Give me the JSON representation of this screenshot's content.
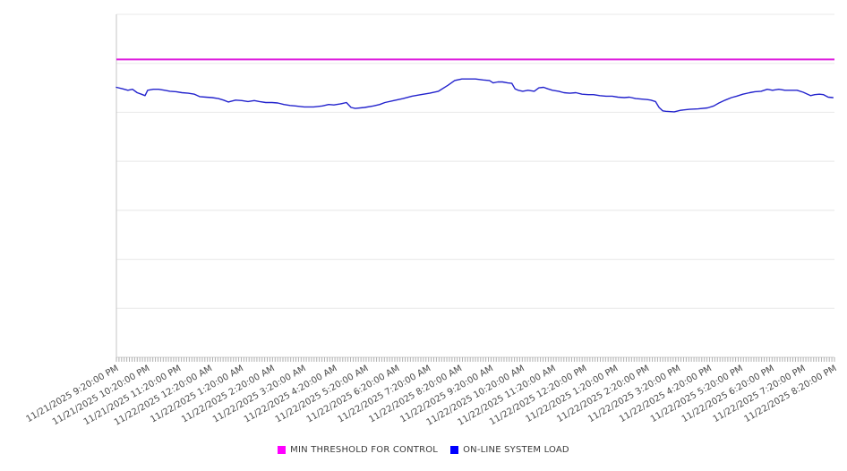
{
  "chart_data": {
    "type": "line",
    "title": "",
    "grid": "horizontal",
    "legend_position": "bottom-center",
    "x_axis": {
      "unit": "time",
      "range_minutes": [
        0,
        1380
      ],
      "minor_tick_interval_minutes": 5,
      "label_interval_minutes": 60,
      "labels": [
        "11/21/2025 9:20:00 PM",
        "11/21/2025 10:20:00 PM",
        "11/21/2025 11:20:00 PM",
        "11/22/2025 12:20:00 AM",
        "11/22/2025 1:20:00 AM",
        "11/22/2025 2:20:00 AM",
        "11/22/2025 3:20:00 AM",
        "11/22/2025 4:20:00 AM",
        "11/22/2025 5:20:00 AM",
        "11/22/2025 6:20:00 AM",
        "11/22/2025 7:20:00 AM",
        "11/22/2025 8:20:00 AM",
        "11/22/2025 9:20:00 AM",
        "11/22/2025 10:20:00 AM",
        "11/22/2025 11:20:00 AM",
        "11/22/2025 12:20:00 PM",
        "11/22/2025 1:20:00 PM",
        "11/22/2025 2:20:00 PM",
        "11/22/2025 3:20:00 PM",
        "11/22/2025 4:20:00 PM",
        "11/22/2025 5:20:00 PM",
        "11/22/2025 6:20:00 PM",
        "11/22/2025 7:20:00 PM",
        "11/22/2025 8:20:00 PM"
      ]
    },
    "y_axis": {
      "tick_labels_visible": false,
      "range": [
        0,
        70
      ],
      "gridline_step": 10
    },
    "series": [
      {
        "name": "MIN THRESHOLD FOR CONTROL",
        "type": "constant-line",
        "color": "#dd1ddd",
        "value": 60.8,
        "x_span_minutes": [
          0,
          1380
        ]
      },
      {
        "name": "ON-LINE SYSTEM LOAD",
        "type": "line",
        "color": "#2323cd",
        "points_minutes_value": [
          [
            0,
            55.1
          ],
          [
            12,
            54.8
          ],
          [
            22,
            54.5
          ],
          [
            31,
            54.7
          ],
          [
            40,
            54.0
          ],
          [
            48,
            53.7
          ],
          [
            55,
            53.4
          ],
          [
            60,
            54.5
          ],
          [
            71,
            54.7
          ],
          [
            81,
            54.7
          ],
          [
            93,
            54.5
          ],
          [
            103,
            54.3
          ],
          [
            115,
            54.2
          ],
          [
            126,
            54.0
          ],
          [
            138,
            53.9
          ],
          [
            150,
            53.7
          ],
          [
            160,
            53.2
          ],
          [
            172,
            53.1
          ],
          [
            184,
            53.0
          ],
          [
            196,
            52.8
          ],
          [
            206,
            52.5
          ],
          [
            215,
            52.1
          ],
          [
            229,
            52.5
          ],
          [
            241,
            52.4
          ],
          [
            253,
            52.2
          ],
          [
            265,
            52.4
          ],
          [
            275,
            52.2
          ],
          [
            287,
            52.0
          ],
          [
            299,
            52.0
          ],
          [
            310,
            51.9
          ],
          [
            322,
            51.6
          ],
          [
            334,
            51.4
          ],
          [
            344,
            51.3
          ],
          [
            361,
            51.1
          ],
          [
            379,
            51.1
          ],
          [
            396,
            51.3
          ],
          [
            408,
            51.6
          ],
          [
            418,
            51.5
          ],
          [
            430,
            51.7
          ],
          [
            442,
            52.0
          ],
          [
            451,
            51.0
          ],
          [
            459,
            50.8
          ],
          [
            477,
            51.0
          ],
          [
            494,
            51.3
          ],
          [
            506,
            51.6
          ],
          [
            516,
            52.0
          ],
          [
            533,
            52.4
          ],
          [
            551,
            52.8
          ],
          [
            568,
            53.3
          ],
          [
            585,
            53.6
          ],
          [
            602,
            53.9
          ],
          [
            619,
            54.3
          ],
          [
            637,
            55.5
          ],
          [
            650,
            56.5
          ],
          [
            664,
            56.8
          ],
          [
            676,
            56.8
          ],
          [
            690,
            56.8
          ],
          [
            705,
            56.6
          ],
          [
            717,
            56.5
          ],
          [
            724,
            56.0
          ],
          [
            733,
            56.2
          ],
          [
            742,
            56.2
          ],
          [
            752,
            56.0
          ],
          [
            760,
            55.9
          ],
          [
            766,
            54.8
          ],
          [
            772,
            54.5
          ],
          [
            781,
            54.3
          ],
          [
            791,
            54.5
          ],
          [
            803,
            54.3
          ],
          [
            812,
            55.0
          ],
          [
            821,
            55.1
          ],
          [
            829,
            54.8
          ],
          [
            838,
            54.5
          ],
          [
            850,
            54.3
          ],
          [
            860,
            54.0
          ],
          [
            872,
            53.9
          ],
          [
            883,
            54.0
          ],
          [
            895,
            53.7
          ],
          [
            907,
            53.6
          ],
          [
            917,
            53.6
          ],
          [
            929,
            53.4
          ],
          [
            941,
            53.3
          ],
          [
            953,
            53.3
          ],
          [
            964,
            53.1
          ],
          [
            976,
            53.0
          ],
          [
            986,
            53.1
          ],
          [
            998,
            52.8
          ],
          [
            1010,
            52.7
          ],
          [
            1020,
            52.6
          ],
          [
            1027,
            52.5
          ],
          [
            1036,
            52.2
          ],
          [
            1043,
            51.0
          ],
          [
            1050,
            50.3
          ],
          [
            1056,
            50.2
          ],
          [
            1072,
            50.1
          ],
          [
            1084,
            50.4
          ],
          [
            1101,
            50.6
          ],
          [
            1118,
            50.7
          ],
          [
            1136,
            50.9
          ],
          [
            1148,
            51.3
          ],
          [
            1158,
            51.9
          ],
          [
            1170,
            52.5
          ],
          [
            1182,
            53.0
          ],
          [
            1192,
            53.3
          ],
          [
            1204,
            53.7
          ],
          [
            1217,
            54.0
          ],
          [
            1227,
            54.2
          ],
          [
            1239,
            54.3
          ],
          [
            1251,
            54.7
          ],
          [
            1261,
            54.5
          ],
          [
            1273,
            54.7
          ],
          [
            1285,
            54.5
          ],
          [
            1296,
            54.5
          ],
          [
            1308,
            54.5
          ],
          [
            1320,
            54.1
          ],
          [
            1334,
            53.4
          ],
          [
            1342,
            53.6
          ],
          [
            1351,
            53.7
          ],
          [
            1359,
            53.6
          ],
          [
            1368,
            53.1
          ],
          [
            1377,
            53.0
          ]
        ]
      }
    ]
  },
  "legend": {
    "items": [
      {
        "label": "MIN THRESHOLD FOR CONTROL",
        "color": "#ff00ff"
      },
      {
        "label": "ON-LINE SYSTEM LOAD",
        "color": "#0000ff"
      }
    ]
  },
  "colors": {
    "background": "#ffffff",
    "gridline": "#e8e8e8",
    "axis_baseline": "#d2d2d2",
    "axis_vertical": "#c6c6c6",
    "tick": "#aeaeae",
    "axis_label_text": "#4a4a4a",
    "legend_text": "#3a3a3a"
  }
}
